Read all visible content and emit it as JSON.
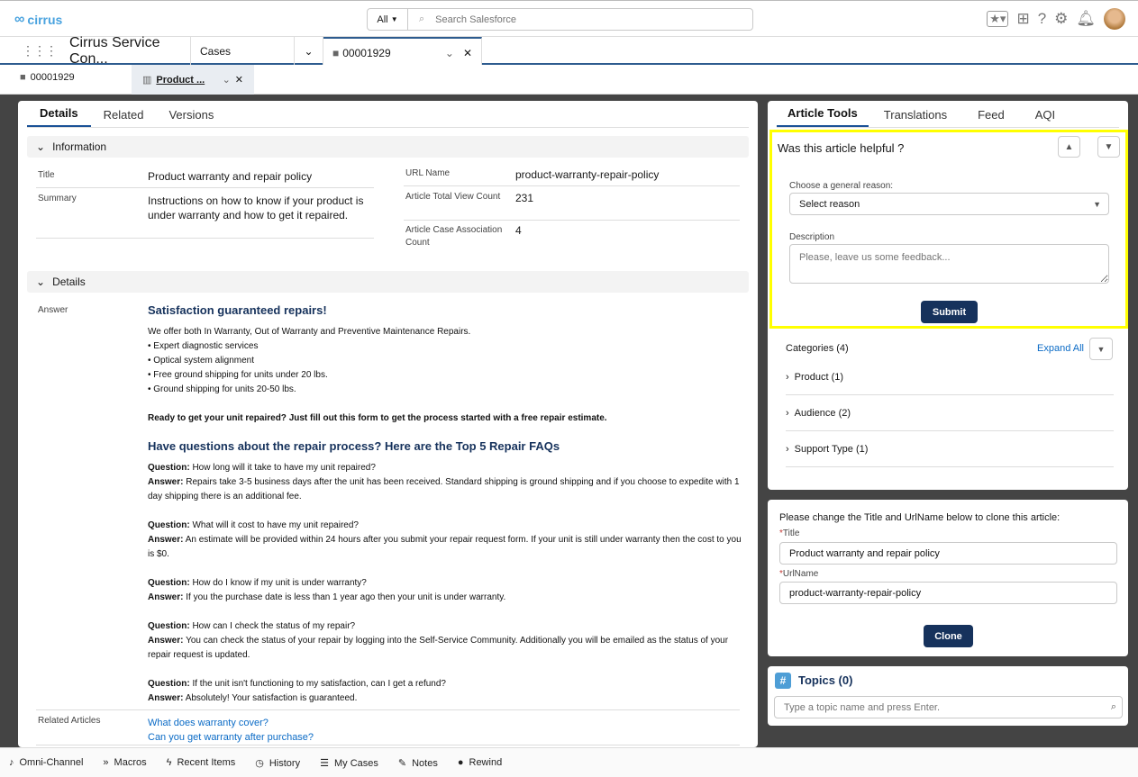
{
  "header": {
    "logo": "cirrus",
    "search_scope": "All",
    "search_placeholder": "Search Salesforce"
  },
  "nav": {
    "app_name": "Cirrus Service Con...",
    "object_tab": "Cases",
    "workspace_tab": "00001929"
  },
  "subtabs": [
    {
      "label": "00001929"
    },
    {
      "label": "Product ..."
    }
  ],
  "left": {
    "tabs": [
      "Details",
      "Related",
      "Versions"
    ],
    "info_section": "Information",
    "fields": {
      "title_label": "Title",
      "title": "Product warranty and repair policy",
      "summary_label": "Summary",
      "summary": "Instructions on how to know if your product is under warranty and how to get it repaired.",
      "url_label": "URL Name",
      "url": "product-warranty-repair-policy",
      "views_label": "Article Total View Count",
      "views": "231",
      "assoc_label": "Article Case Association Count",
      "assoc": "4"
    },
    "details_section": "Details",
    "answer_label": "Answer",
    "answer": {
      "h1": "Satisfaction guaranteed repairs!",
      "intro": "We offer both In Warranty, Out of Warranty and Preventive Maintenance Repairs.",
      "bullets": [
        "• Expert diagnostic services",
        "• Optical system alignment",
        "• Free ground shipping for units under 20 lbs.",
        "• Ground shipping for units 20-50 lbs."
      ],
      "cta": "Ready to get your unit repaired?  Just fill out this form to get the process started with a free repair estimate.",
      "h2": "Have questions about the repair process?  Here are the Top 5 Repair FAQs",
      "q_label": "Question:",
      "a_label": "Answer:",
      "faqs": [
        {
          "q": "How long will it take to have my unit repaired?",
          "a": "Repairs take 3-5 business days after the unit has been received.  Standard shipping is ground shipping and if you choose to expedite with 1 day shipping there is an additional fee."
        },
        {
          "q": "What will it cost to have my unit repaired?",
          "a": "An estimate will be provided within 24 hours after you submit your repair request form.  If your unit is still under warranty then the cost to you is $0."
        },
        {
          "q": "How do I know if my unit is under warranty?",
          "a": "If you the purchase date is less than 1 year ago then your unit is under warranty."
        },
        {
          "q": "How can I check the status of my repair?",
          "a": "You can check the status of your repair by logging into the  Self-Service Community.  Additionally you will be emailed as the status of your repair request is updated."
        },
        {
          "q": "If the unit isn't functioning to my satisfaction, can I get a refund?",
          "a": "Absolutely!  Your satisfaction is guaranteed."
        }
      ]
    },
    "related_label": "Related Articles",
    "related": [
      "What does warranty cover?",
      "Can you get warranty after purchase?"
    ]
  },
  "right": {
    "tabs": [
      "Article Tools",
      "Translations",
      "Feed",
      "AQI"
    ],
    "feedback": {
      "question": "Was this article helpful ?",
      "reason_label": "Choose a general reason:",
      "reason_value": "Select reason",
      "desc_label": "Description",
      "desc_placeholder": "Please, leave us some feedback...",
      "submit": "Submit",
      "highlight_color": "#ffff00"
    },
    "categories": {
      "title": "Categories (4)",
      "expand": "Expand All",
      "items": [
        "Product (1)",
        "Audience (2)",
        "Support Type (1)"
      ]
    },
    "clone": {
      "instructions": "Please change the Title and UrlName below to clone this article:",
      "title_label": "Title",
      "title_value": "Product warranty and repair policy",
      "url_label": "UrlName",
      "url_value": "product-warranty-repair-policy",
      "button": "Clone"
    },
    "topics": {
      "title": "Topics (0)",
      "placeholder": "Type a topic name and press Enter."
    }
  },
  "footer": [
    "Omni-Channel",
    "Macros",
    "Recent Items",
    "History",
    "My Cases",
    "Notes",
    "Rewind"
  ]
}
